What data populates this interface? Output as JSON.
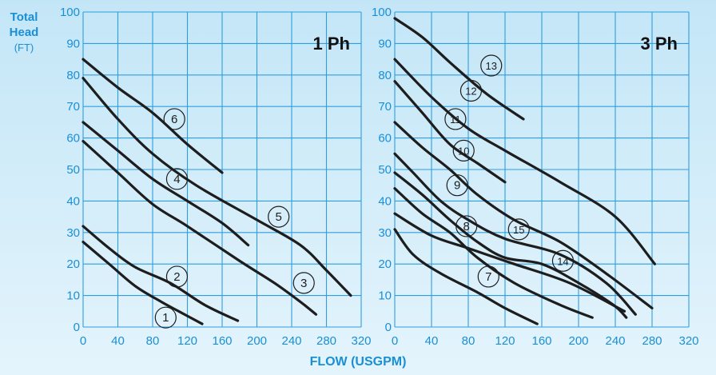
{
  "y_title_line1": "Total",
  "y_title_line2": "Head",
  "y_title_unit": "(FT)",
  "x_title": "FLOW (USGPM)",
  "colors": {
    "axis_text": "#1a8fd6",
    "grid": "#2e9ee0",
    "curve": "#1d1d1d"
  },
  "chart_data": [
    {
      "type": "line",
      "panel_label": "1 Ph",
      "xlim": [
        0,
        320
      ],
      "ylim": [
        0,
        100
      ],
      "x_ticks": [
        0,
        40,
        80,
        120,
        160,
        200,
        240,
        280,
        320
      ],
      "y_ticks": [
        0,
        10,
        20,
        30,
        40,
        50,
        60,
        70,
        80,
        90,
        100
      ],
      "grid": true,
      "series": [
        {
          "name": "1",
          "points": [
            [
              0,
              27
            ],
            [
              30,
              20
            ],
            [
              60,
              13
            ],
            [
              90,
              8
            ],
            [
              110,
              5
            ],
            [
              137,
              1
            ]
          ],
          "label_at": [
            95,
            3
          ]
        },
        {
          "name": "2",
          "points": [
            [
              0,
              32
            ],
            [
              30,
              25
            ],
            [
              60,
              19
            ],
            [
              100,
              14
            ],
            [
              140,
              7
            ],
            [
              178,
              2
            ]
          ],
          "label_at": [
            108,
            16
          ]
        },
        {
          "name": "3",
          "points": [
            [
              0,
              59
            ],
            [
              40,
              49
            ],
            [
              80,
              39
            ],
            [
              120,
              32
            ],
            [
              180,
              21
            ],
            [
              220,
              14
            ],
            [
              250,
              8
            ],
            [
              268,
              4
            ]
          ],
          "label_at": [
            254,
            14
          ]
        },
        {
          "name": "4",
          "points": [
            [
              0,
              65
            ],
            [
              40,
              56
            ],
            [
              80,
              47
            ],
            [
              120,
              40
            ],
            [
              160,
              33
            ],
            [
              190,
              26
            ]
          ],
          "label_at": [
            108,
            47
          ]
        },
        {
          "name": "5",
          "points": [
            [
              0,
              79
            ],
            [
              40,
              66
            ],
            [
              80,
              55
            ],
            [
              130,
              45
            ],
            [
              200,
              34
            ],
            [
              250,
              26
            ],
            [
              280,
              18
            ],
            [
              308,
              10
            ]
          ],
          "label_at": [
            225,
            35
          ]
        },
        {
          "name": "6",
          "points": [
            [
              0,
              85
            ],
            [
              40,
              76
            ],
            [
              80,
              68
            ],
            [
              120,
              58
            ],
            [
              160,
              49
            ]
          ],
          "label_at": [
            105,
            66
          ]
        }
      ]
    },
    {
      "type": "line",
      "panel_label": "3 Ph",
      "xlim": [
        0,
        320
      ],
      "ylim": [
        0,
        100
      ],
      "x_ticks": [
        0,
        40,
        80,
        120,
        160,
        200,
        240,
        280,
        320
      ],
      "y_ticks": [
        0,
        10,
        20,
        30,
        40,
        50,
        60,
        70,
        80,
        90,
        100
      ],
      "grid": true,
      "series": [
        {
          "name": "7",
          "points": [
            [
              0,
              31
            ],
            [
              20,
              23
            ],
            [
              50,
              17
            ],
            [
              90,
              11
            ],
            [
              120,
              6
            ],
            [
              155,
              1
            ]
          ],
          "label_at": [
            102,
            16
          ]
        },
        {
          "name": "8",
          "points": [
            [
              0,
              44
            ],
            [
              30,
              36
            ],
            [
              60,
              30
            ],
            [
              90,
              22
            ],
            [
              130,
              14
            ],
            [
              180,
              7
            ],
            [
              215,
              3
            ]
          ],
          "label_at": [
            78,
            32
          ]
        },
        {
          "name": "9",
          "points": [
            [
              0,
              49
            ],
            [
              30,
              42
            ],
            [
              60,
              34
            ],
            [
              90,
              27
            ],
            [
              120,
              22
            ],
            [
              160,
              20
            ],
            [
              200,
              14
            ],
            [
              238,
              7
            ],
            [
              252,
              3
            ]
          ],
          "label_at": [
            68,
            45
          ]
        },
        {
          "name": "10",
          "points": [
            [
              0,
              55
            ],
            [
              20,
              49
            ],
            [
              50,
              40
            ],
            [
              80,
              34
            ],
            [
              120,
              28
            ],
            [
              180,
              23
            ],
            [
              230,
              14
            ],
            [
              262,
              4
            ]
          ],
          "label_at": [
            75,
            56
          ]
        },
        {
          "name": "11",
          "points": [
            [
              0,
              65
            ],
            [
              30,
              57
            ],
            [
              60,
              50
            ],
            [
              90,
              42
            ],
            [
              130,
              34
            ],
            [
              180,
              27
            ],
            [
              230,
              17
            ],
            [
              280,
              6
            ]
          ],
          "label_at": [
            66,
            66
          ]
        },
        {
          "name": "12",
          "points": [
            [
              0,
              78
            ],
            [
              30,
              68
            ],
            [
              60,
              58
            ],
            [
              90,
              52
            ],
            [
              120,
              46
            ]
          ],
          "label_at": [
            83,
            75
          ]
        },
        {
          "name": "13",
          "points": [
            [
              0,
              98
            ],
            [
              30,
              92
            ],
            [
              60,
              84
            ],
            [
              100,
              74
            ],
            [
              140,
              66
            ]
          ],
          "label_at": [
            105,
            83
          ]
        },
        {
          "name": "14",
          "points": [
            [
              0,
              36
            ],
            [
              40,
              29
            ],
            [
              80,
              25
            ],
            [
              130,
              20
            ],
            [
              190,
              14
            ],
            [
              250,
              5
            ]
          ],
          "label_at": [
            183,
            21
          ]
        },
        {
          "name": "15",
          "points": [
            [
              0,
              85
            ],
            [
              40,
              73
            ],
            [
              80,
              63
            ],
            [
              120,
              56
            ],
            [
              180,
              46
            ],
            [
              240,
              35
            ],
            [
              283,
              20
            ]
          ],
          "label_at": [
            135,
            31
          ]
        }
      ]
    }
  ]
}
